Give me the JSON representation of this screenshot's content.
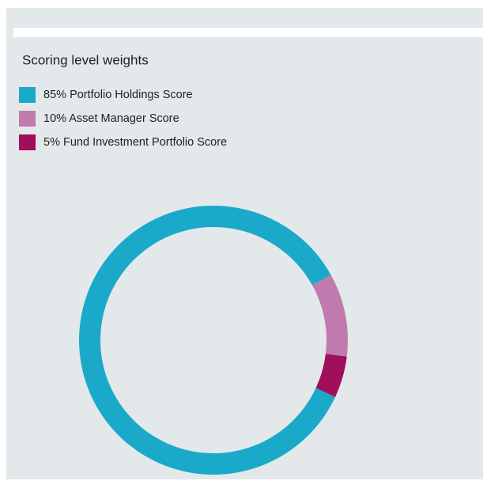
{
  "chart_data": {
    "type": "donut",
    "title": "Scoring level weights",
    "categories": [
      "Portfolio Holdings Score",
      "Asset Manager Score",
      "Fund Investment Portfolio Score"
    ],
    "values": [
      85,
      10,
      5
    ],
    "value_labels": [
      "85%",
      "10%",
      "5%"
    ],
    "colors": [
      "#1ba9c9",
      "#c17aae",
      "#a00f5b"
    ],
    "legend": "top-left"
  }
}
